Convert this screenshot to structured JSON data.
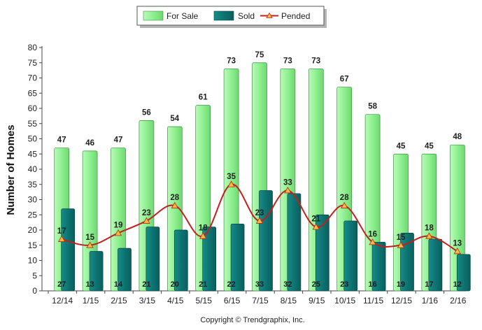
{
  "chart_data": {
    "type": "bar",
    "categories": [
      "12/14",
      "1/15",
      "2/15",
      "3/15",
      "4/15",
      "5/15",
      "6/15",
      "7/15",
      "8/15",
      "9/15",
      "10/15",
      "11/15",
      "12/15",
      "1/16",
      "2/16"
    ],
    "series": [
      {
        "name": "For Sale",
        "type": "bar",
        "color": "#98f49a",
        "values": [
          47,
          46,
          47,
          56,
          54,
          61,
          73,
          75,
          73,
          73,
          67,
          58,
          45,
          45,
          48
        ]
      },
      {
        "name": "Sold",
        "type": "bar",
        "color": "#0f7a78",
        "values": [
          27,
          13,
          14,
          21,
          20,
          21,
          22,
          33,
          32,
          25,
          23,
          16,
          19,
          17,
          12
        ]
      },
      {
        "name": "Pended",
        "type": "line",
        "color": "#c0201e",
        "marker_color": "#f3bf3a",
        "values": [
          17,
          15,
          19,
          23,
          28,
          18,
          35,
          23,
          33,
          21,
          28,
          16,
          15,
          18,
          13
        ]
      }
    ],
    "ylabel": "Number of Homes",
    "xlabel": "",
    "ylim": [
      0,
      80
    ],
    "yticks": [
      0,
      5,
      10,
      15,
      20,
      25,
      30,
      35,
      40,
      45,
      50,
      55,
      60,
      65,
      70,
      75,
      80
    ],
    "grid": false,
    "legend": "top-center",
    "footer": "Copyright © Trendgraphix, Inc."
  }
}
